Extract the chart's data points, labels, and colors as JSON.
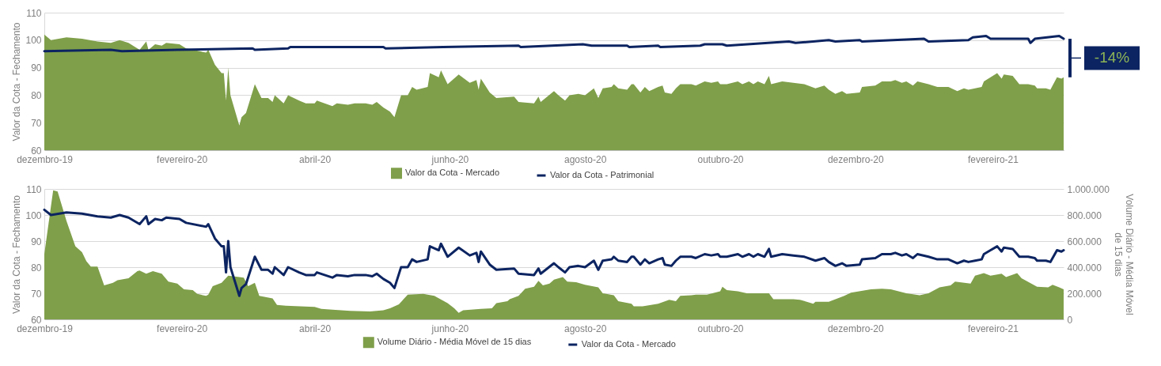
{
  "chart_data": [
    {
      "type": "area",
      "ylabel": "Valor da Cota - Fechamento",
      "xlim": [
        "2019-12-01",
        "2021-03-05"
      ],
      "xticks": [
        {
          "value": "2019-12-01",
          "label": "dezembro-19"
        },
        {
          "value": "2020-02-01",
          "label": "fevereiro-20"
        },
        {
          "value": "2020-04-01",
          "label": "abril-20"
        },
        {
          "value": "2020-06-01",
          "label": "junho-20"
        },
        {
          "value": "2020-08-01",
          "label": "agosto-20"
        },
        {
          "value": "2020-10-01",
          "label": "outubro-20"
        },
        {
          "value": "2020-12-01",
          "label": "dezembro-20"
        },
        {
          "value": "2021-02-01",
          "label": "fevereiro-21"
        }
      ],
      "ylim": [
        60,
        110
      ],
      "yticks": [
        60,
        70,
        80,
        90,
        100,
        110
      ],
      "grid": "y",
      "legend": "bottom",
      "annotations": [
        "-14%"
      ],
      "series": [
        {
          "name": "Valor da Cota - Mercado",
          "color": "#7f9f4a",
          "x": [
            "2019-12-01",
            "2019-12-04",
            "2019-12-11",
            "2019-12-18",
            "2019-12-25",
            "2019-12-31",
            "2020-01-04",
            "2020-01-08",
            "2020-01-13",
            "2020-01-16",
            "2020-01-17",
            "2020-01-20",
            "2020-01-23",
            "2020-01-25",
            "2020-01-31",
            "2020-02-03",
            "2020-02-12",
            "2020-02-13",
            "2020-02-16",
            "2020-02-19",
            "2020-02-20",
            "2020-02-21",
            "2020-02-22",
            "2020-02-23",
            "2020-02-27",
            "2020-02-28",
            "2020-03-01",
            "2020-03-05",
            "2020-03-08",
            "2020-03-11",
            "2020-03-13",
            "2020-03-14",
            "2020-03-18",
            "2020-03-20",
            "2020-03-25",
            "2020-03-28",
            "2020-04-01",
            "2020-04-02",
            "2020-04-09",
            "2020-04-11",
            "2020-04-16",
            "2020-04-19",
            "2020-04-24",
            "2020-04-27",
            "2020-04-29",
            "2020-05-02",
            "2020-05-05",
            "2020-05-07",
            "2020-05-10",
            "2020-05-13",
            "2020-05-15",
            "2020-05-17",
            "2020-05-22",
            "2020-05-23",
            "2020-05-27",
            "2020-05-28",
            "2020-05-31",
            "2020-06-05",
            "2020-06-10",
            "2020-06-13",
            "2020-06-14",
            "2020-06-15",
            "2020-06-19",
            "2020-06-22",
            "2020-06-30",
            "2020-07-02",
            "2020-07-09",
            "2020-07-11",
            "2020-07-12",
            "2020-07-18",
            "2020-07-20",
            "2020-07-23",
            "2020-07-25",
            "2020-07-29",
            "2020-08-01",
            "2020-08-05",
            "2020-08-07",
            "2020-08-09",
            "2020-08-13",
            "2020-08-14",
            "2020-08-16",
            "2020-08-20",
            "2020-08-22",
            "2020-08-23",
            "2020-08-26",
            "2020-08-28",
            "2020-08-30",
            "2020-09-03",
            "2020-09-05",
            "2020-09-06",
            "2020-09-09",
            "2020-09-11",
            "2020-09-13",
            "2020-09-18",
            "2020-09-20",
            "2020-09-24",
            "2020-09-27",
            "2020-09-30",
            "2020-10-01",
            "2020-10-04",
            "2020-10-09",
            "2020-10-11",
            "2020-10-14",
            "2020-10-16",
            "2020-10-18",
            "2020-10-21",
            "2020-10-23",
            "2020-10-24",
            "2020-10-29",
            "2020-11-03",
            "2020-11-08",
            "2020-11-13",
            "2020-11-17",
            "2020-11-19",
            "2020-11-22",
            "2020-11-25",
            "2020-11-27",
            "2020-12-03",
            "2020-12-04",
            "2020-12-10",
            "2020-12-13",
            "2020-12-17",
            "2020-12-19",
            "2020-12-22",
            "2020-12-24",
            "2020-12-27",
            "2020-12-29",
            "2021-01-03",
            "2021-01-07",
            "2021-01-12",
            "2021-01-16",
            "2021-01-19",
            "2021-01-21",
            "2021-01-24",
            "2021-01-27",
            "2021-01-28",
            "2021-01-31",
            "2021-02-03",
            "2021-02-05",
            "2021-02-06",
            "2021-02-10",
            "2021-02-13",
            "2021-02-17",
            "2021-02-20",
            "2021-02-21",
            "2021-02-25",
            "2021-02-27",
            "2021-03-02",
            "2021-03-04",
            "2021-03-05"
          ],
          "values": [
            102,
            100,
            101,
            100.5,
            99.5,
            99,
            100,
            99,
            96.5,
            99.5,
            96.5,
            98.5,
            98,
            99,
            98.5,
            97,
            95.5,
            96.5,
            91,
            88,
            88,
            78,
            90,
            80,
            69,
            72,
            73.5,
            84,
            79,
            79,
            77.5,
            80,
            77,
            80,
            78,
            77,
            77,
            78,
            76,
            77,
            76.5,
            77,
            77,
            76.5,
            77.5,
            75.5,
            74,
            72,
            80,
            80,
            83,
            82,
            83,
            88,
            86.5,
            89,
            84,
            87.5,
            84.5,
            85.5,
            82,
            86,
            81,
            79,
            79.5,
            77.5,
            77,
            79.5,
            77.5,
            81.5,
            80,
            78,
            80,
            80.5,
            80,
            82.5,
            79,
            82.5,
            83,
            84,
            82.5,
            82,
            84,
            84,
            81,
            83,
            81.5,
            83,
            83.5,
            81,
            80.5,
            82.5,
            84,
            84,
            83.5,
            85,
            84.5,
            85,
            84,
            84,
            85,
            84,
            85,
            84,
            85,
            84,
            87,
            84,
            85,
            84.5,
            84,
            82.5,
            83.5,
            82,
            80.5,
            81.5,
            80.5,
            81,
            83,
            83.5,
            85,
            85,
            85.5,
            84.5,
            85,
            83.5,
            85,
            84,
            83,
            83,
            81.5,
            82.5,
            82,
            82.5,
            83,
            85,
            86.5,
            88,
            86,
            87.5,
            87,
            84,
            84,
            83.5,
            82.5,
            82.5,
            82,
            86.5,
            86,
            86.5
          ]
        },
        {
          "name": "Valor da Cota - Patrimonial",
          "type": "line",
          "color": "#0c2461",
          "x": [
            "2019-12-01",
            "2019-12-31",
            "2020-01-05",
            "2020-01-30",
            "2020-03-04",
            "2020-03-05",
            "2020-03-20",
            "2020-03-21",
            "2020-05-02",
            "2020-05-03",
            "2020-05-29",
            "2020-07-02",
            "2020-07-03",
            "2020-07-31",
            "2020-08-04",
            "2020-08-20",
            "2020-08-21",
            "2020-09-03",
            "2020-09-04",
            "2020-09-22",
            "2020-09-24",
            "2020-10-02",
            "2020-10-04",
            "2020-11-01",
            "2020-11-04",
            "2020-11-19",
            "2020-11-22",
            "2020-12-03",
            "2020-12-04",
            "2021-01-01",
            "2021-01-03",
            "2021-01-21",
            "2021-01-23",
            "2021-01-29",
            "2021-01-31",
            "2021-02-17",
            "2021-02-18",
            "2021-02-20",
            "2021-03-03",
            "2021-03-05"
          ],
          "values": [
            96,
            96.5,
            96,
            96.5,
            97,
            96.5,
            97,
            97.5,
            97.5,
            97,
            97.5,
            98,
            97.5,
            98.5,
            98,
            98,
            97.5,
            98,
            97.5,
            98,
            98.5,
            98.5,
            98,
            99.5,
            99,
            100,
            99.5,
            100,
            99.5,
            100.5,
            99.5,
            100,
            101,
            101.5,
            100.5,
            100.5,
            99,
            100.5,
            101.5,
            100.5
          ]
        }
      ]
    },
    {
      "type": "line",
      "ylabel": "Valor da Cota - Fechamento",
      "y2label": "Volume Diário - Média Móvel de 15 dias",
      "xlim": [
        "2019-12-01",
        "2021-03-05"
      ],
      "xticks": [
        {
          "value": "2019-12-01",
          "label": "dezembro-19"
        },
        {
          "value": "2020-02-01",
          "label": "fevereiro-20"
        },
        {
          "value": "2020-04-01",
          "label": "abril-20"
        },
        {
          "value": "2020-06-01",
          "label": "junho-20"
        },
        {
          "value": "2020-08-01",
          "label": "agosto-20"
        },
        {
          "value": "2020-10-01",
          "label": "outubro-20"
        },
        {
          "value": "2020-12-01",
          "label": "dezembro-20"
        },
        {
          "value": "2021-02-01",
          "label": "fevereiro-21"
        }
      ],
      "ylim": [
        60,
        110
      ],
      "yticks": [
        60,
        70,
        80,
        90,
        100,
        110
      ],
      "y2lim": [
        0,
        1000000
      ],
      "y2ticks": [
        0,
        {
          "value": 200000,
          "label": "200.000"
        },
        {
          "value": 400000,
          "label": "400.000"
        },
        {
          "value": 600000,
          "label": "600.000"
        },
        {
          "value": 800000,
          "label": "800.000"
        },
        {
          "value": 1000000,
          "label": "1.000.000"
        }
      ],
      "grid": "y",
      "legend": "bottom",
      "series": [
        {
          "name": "Volume Diário - Média Móvel de 15 dias",
          "type": "area",
          "axis": "y2",
          "color": "#7f9f4a",
          "x": [
            "2019-12-01",
            "2019-12-05",
            "2019-12-07",
            "2019-12-11",
            "2019-12-15",
            "2019-12-18",
            "2019-12-20",
            "2019-12-22",
            "2019-12-25",
            "2019-12-28",
            "2020-01-01",
            "2020-01-03",
            "2020-01-08",
            "2020-01-12",
            "2020-01-13",
            "2020-01-16",
            "2020-01-19",
            "2020-01-23",
            "2020-01-26",
            "2020-01-30",
            "2020-02-02",
            "2020-02-06",
            "2020-02-08",
            "2020-02-12",
            "2020-02-13",
            "2020-02-15",
            "2020-02-19",
            "2020-02-22",
            "2020-02-27",
            "2020-02-29",
            "2020-03-02",
            "2020-03-05",
            "2020-03-07",
            "2020-03-13",
            "2020-03-15",
            "2020-03-19",
            "2020-04-01",
            "2020-04-04",
            "2020-04-09",
            "2020-04-17",
            "2020-04-26",
            "2020-05-02",
            "2020-05-05",
            "2020-05-09",
            "2020-05-13",
            "2020-05-20",
            "2020-05-25",
            "2020-05-31",
            "2020-06-03",
            "2020-06-05",
            "2020-06-07",
            "2020-06-15",
            "2020-06-20",
            "2020-06-22",
            "2020-06-27",
            "2020-06-28",
            "2020-07-02",
            "2020-07-05",
            "2020-07-09",
            "2020-07-11",
            "2020-07-13",
            "2020-07-16",
            "2020-07-18",
            "2020-07-22",
            "2020-07-24",
            "2020-07-28",
            "2020-08-01",
            "2020-08-07",
            "2020-08-09",
            "2020-08-14",
            "2020-08-16",
            "2020-08-22",
            "2020-08-23",
            "2020-08-27",
            "2020-09-03",
            "2020-09-08",
            "2020-09-11",
            "2020-09-13",
            "2020-09-18",
            "2020-09-20",
            "2020-09-25",
            "2020-10-01",
            "2020-10-02",
            "2020-10-04",
            "2020-10-09",
            "2020-10-13",
            "2020-10-23",
            "2020-10-25",
            "2020-11-03",
            "2020-11-06",
            "2020-11-12",
            "2020-11-13",
            "2020-11-19",
            "2020-11-26",
            "2020-11-29",
            "2020-12-08",
            "2020-12-13",
            "2020-12-17",
            "2020-12-24",
            "2020-12-30",
            "2021-01-03",
            "2021-01-08",
            "2021-01-13",
            "2021-01-15",
            "2021-01-22",
            "2021-01-24",
            "2021-01-28",
            "2021-01-31",
            "2021-02-05",
            "2021-02-07",
            "2021-02-12",
            "2021-02-14",
            "2021-02-21",
            "2021-02-26",
            "2021-02-28",
            "2021-03-03",
            "2021-03-05"
          ],
          "values": [
            500000,
            990000,
            980000,
            755000,
            560000,
            515000,
            445000,
            405000,
            405000,
            260000,
            280000,
            300000,
            315000,
            370000,
            375000,
            350000,
            370000,
            350000,
            290000,
            275000,
            230000,
            225000,
            195000,
            180000,
            190000,
            255000,
            280000,
            335000,
            325000,
            320000,
            255000,
            280000,
            180000,
            160000,
            110000,
            105000,
            95000,
            80000,
            75000,
            65000,
            60000,
            70000,
            85000,
            115000,
            190000,
            195000,
            180000,
            125000,
            85000,
            50000,
            70000,
            80000,
            85000,
            125000,
            140000,
            155000,
            180000,
            235000,
            250000,
            295000,
            260000,
            275000,
            305000,
            325000,
            290000,
            285000,
            265000,
            245000,
            200000,
            185000,
            140000,
            120000,
            100000,
            100000,
            120000,
            150000,
            140000,
            180000,
            185000,
            190000,
            190000,
            215000,
            250000,
            225000,
            215000,
            200000,
            200000,
            155000,
            155000,
            150000,
            120000,
            135000,
            135000,
            180000,
            205000,
            230000,
            235000,
            230000,
            200000,
            185000,
            200000,
            245000,
            260000,
            290000,
            275000,
            335000,
            355000,
            335000,
            350000,
            325000,
            355000,
            315000,
            250000,
            245000,
            265000,
            245000,
            230000
          ]
        },
        {
          "name": "Valor da Cota - Mercado",
          "color": "#0c2461",
          "x": [
            "2019-12-01",
            "2019-12-04",
            "2019-12-11",
            "2019-12-18",
            "2019-12-25",
            "2019-12-31",
            "2020-01-04",
            "2020-01-08",
            "2020-01-13",
            "2020-01-16",
            "2020-01-17",
            "2020-01-20",
            "2020-01-23",
            "2020-01-25",
            "2020-01-31",
            "2020-02-03",
            "2020-02-12",
            "2020-02-13",
            "2020-02-16",
            "2020-02-19",
            "2020-02-20",
            "2020-02-21",
            "2020-02-22",
            "2020-02-23",
            "2020-02-27",
            "2020-02-28",
            "2020-03-01",
            "2020-03-05",
            "2020-03-08",
            "2020-03-11",
            "2020-03-13",
            "2020-03-14",
            "2020-03-18",
            "2020-03-20",
            "2020-03-25",
            "2020-03-28",
            "2020-04-01",
            "2020-04-02",
            "2020-04-09",
            "2020-04-11",
            "2020-04-16",
            "2020-04-19",
            "2020-04-24",
            "2020-04-27",
            "2020-04-29",
            "2020-05-02",
            "2020-05-05",
            "2020-05-07",
            "2020-05-10",
            "2020-05-13",
            "2020-05-15",
            "2020-05-17",
            "2020-05-22",
            "2020-05-23",
            "2020-05-27",
            "2020-05-28",
            "2020-05-31",
            "2020-06-05",
            "2020-06-10",
            "2020-06-13",
            "2020-06-14",
            "2020-06-15",
            "2020-06-19",
            "2020-06-22",
            "2020-06-30",
            "2020-07-02",
            "2020-07-09",
            "2020-07-11",
            "2020-07-12",
            "2020-07-18",
            "2020-07-20",
            "2020-07-23",
            "2020-07-25",
            "2020-07-29",
            "2020-08-01",
            "2020-08-05",
            "2020-08-07",
            "2020-08-09",
            "2020-08-13",
            "2020-08-14",
            "2020-08-16",
            "2020-08-20",
            "2020-08-22",
            "2020-08-23",
            "2020-08-26",
            "2020-08-28",
            "2020-08-30",
            "2020-09-03",
            "2020-09-05",
            "2020-09-06",
            "2020-09-09",
            "2020-09-11",
            "2020-09-13",
            "2020-09-18",
            "2020-09-20",
            "2020-09-24",
            "2020-09-27",
            "2020-09-30",
            "2020-10-01",
            "2020-10-04",
            "2020-10-09",
            "2020-10-11",
            "2020-10-14",
            "2020-10-16",
            "2020-10-18",
            "2020-10-21",
            "2020-10-23",
            "2020-10-24",
            "2020-10-29",
            "2020-11-03",
            "2020-11-08",
            "2020-11-13",
            "2020-11-17",
            "2020-11-19",
            "2020-11-22",
            "2020-11-25",
            "2020-11-27",
            "2020-12-03",
            "2020-12-04",
            "2020-12-10",
            "2020-12-13",
            "2020-12-17",
            "2020-12-19",
            "2020-12-22",
            "2020-12-24",
            "2020-12-27",
            "2020-12-29",
            "2021-01-03",
            "2021-01-07",
            "2021-01-12",
            "2021-01-16",
            "2021-01-19",
            "2021-01-21",
            "2021-01-24",
            "2021-01-27",
            "2021-01-28",
            "2021-01-31",
            "2021-02-03",
            "2021-02-05",
            "2021-02-06",
            "2021-02-10",
            "2021-02-13",
            "2021-02-17",
            "2021-02-20",
            "2021-02-21",
            "2021-02-25",
            "2021-02-27",
            "2021-03-02",
            "2021-03-04",
            "2021-03-05"
          ],
          "values": [
            102,
            100,
            101,
            100.5,
            99.5,
            99,
            100,
            99,
            96.5,
            99.5,
            96.5,
            98.5,
            98,
            99,
            98.5,
            97,
            95.5,
            96.5,
            91,
            88,
            88,
            78,
            90,
            80,
            69,
            72,
            73.5,
            84,
            79,
            79,
            77.5,
            80,
            77,
            80,
            78,
            77,
            77,
            78,
            76,
            77,
            76.5,
            77,
            77,
            76.5,
            77.5,
            75.5,
            74,
            72,
            80,
            80,
            83,
            82,
            83,
            88,
            86.5,
            89,
            84,
            87.5,
            84.5,
            85.5,
            82,
            86,
            81,
            79,
            79.5,
            77.5,
            77,
            79.5,
            77.5,
            81.5,
            80,
            78,
            80,
            80.5,
            80,
            82.5,
            79,
            82.5,
            83,
            84,
            82.5,
            82,
            84,
            84,
            81,
            83,
            81.5,
            83,
            83.5,
            81,
            80.5,
            82.5,
            84,
            84,
            83.5,
            85,
            84.5,
            85,
            84,
            84,
            85,
            84,
            85,
            84,
            85,
            84,
            87,
            84,
            85,
            84.5,
            84,
            82.5,
            83.5,
            82,
            80.5,
            81.5,
            80.5,
            81,
            83,
            83.5,
            85,
            85,
            85.5,
            84.5,
            85,
            83.5,
            85,
            84,
            83,
            83,
            81.5,
            82.5,
            82,
            82.5,
            83,
            85,
            86.5,
            88,
            86,
            87.5,
            87,
            84,
            84,
            83.5,
            82.5,
            82.5,
            82,
            86.5,
            86,
            86.5
          ]
        }
      ]
    }
  ]
}
